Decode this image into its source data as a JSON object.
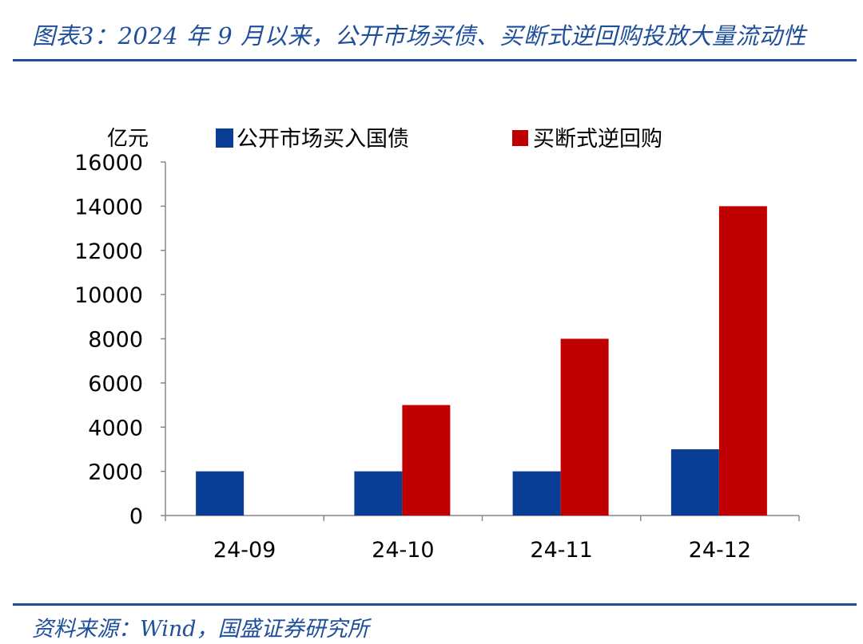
{
  "header": {
    "title": "图表3：2024 年 9 月以来，公开市场买债、买断式逆回购投放大量流动性"
  },
  "footer": {
    "source": "资料来源：Wind，国盛证券研究所"
  },
  "colors": {
    "accent": "#1f4e9a",
    "series_blue": "#0a3d96",
    "series_red": "#c00000",
    "axis": "#888888"
  },
  "chart_data": {
    "type": "bar",
    "title": "",
    "unit_label": "亿元",
    "xlabel": "",
    "ylabel": "",
    "categories": [
      "24-09",
      "24-10",
      "24-11",
      "24-12"
    ],
    "series": [
      {
        "name": "公开市场买入国债",
        "values": [
          2000,
          2000,
          2000,
          3000
        ]
      },
      {
        "name": "买断式逆回购",
        "values": [
          0,
          5000,
          8000,
          14000
        ]
      }
    ],
    "ylim": [
      0,
      16000
    ],
    "yticks": [
      "0",
      "2000",
      "4000",
      "6000",
      "8000",
      "10000",
      "12000",
      "14000",
      "16000"
    ],
    "grid": false,
    "legend_position": "top"
  }
}
